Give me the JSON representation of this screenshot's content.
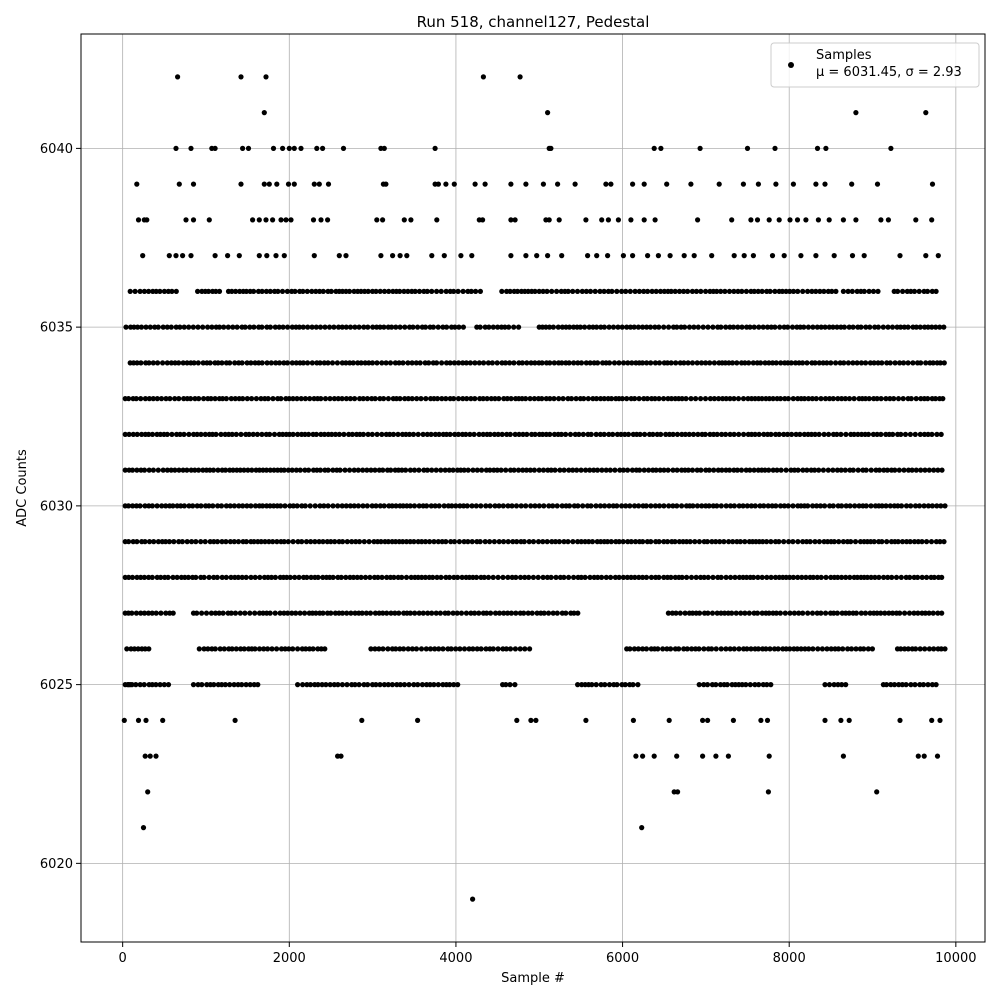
{
  "chart_data": {
    "type": "scatter",
    "title": "Run 518, channel127, Pedestal",
    "xlabel": "Sample #",
    "ylabel": "ADC Counts",
    "xlim": [
      -500,
      10350
    ],
    "ylim": [
      6017.8,
      6043.2
    ],
    "xticks": [
      0,
      2000,
      4000,
      6000,
      8000,
      10000
    ],
    "xtick_labels": [
      "0",
      "2000",
      "4000",
      "6000",
      "8000",
      "10000"
    ],
    "yticks": [
      6020,
      6025,
      6030,
      6035,
      6040
    ],
    "ytick_labels": [
      "6020",
      "6025",
      "6030",
      "6035",
      "6040"
    ],
    "grid": true,
    "legend": {
      "placement": "top-right",
      "entries": [
        {
          "label": "Samples",
          "stats": "μ = 6031.45, σ = 2.93"
        }
      ]
    },
    "marker_color": "#000000",
    "series": [
      {
        "name": "Samples",
        "points": [
          [
            20,
            6024
          ],
          [
            60,
            6025
          ],
          [
            90,
            6025
          ],
          [
            250,
            6021
          ],
          [
            280,
            6024
          ],
          [
            270,
            6023
          ],
          [
            300,
            6022
          ],
          [
            330,
            6023
          ],
          [
            400,
            6023
          ],
          [
            480,
            6024
          ],
          [
            660,
            6042
          ],
          [
            1420,
            6042
          ],
          [
            1720,
            6042
          ],
          [
            1700,
            6041
          ],
          [
            4330,
            6042
          ],
          [
            4770,
            6042
          ],
          [
            5100,
            6041
          ],
          [
            8800,
            6041
          ],
          [
            9640,
            6041
          ],
          [
            640,
            6040
          ],
          [
            820,
            6040
          ],
          [
            1070,
            6040
          ],
          [
            1110,
            6040
          ],
          [
            1440,
            6040
          ],
          [
            1510,
            6040
          ],
          [
            1810,
            6040
          ],
          [
            1920,
            6040
          ],
          [
            2000,
            6040
          ],
          [
            2060,
            6040
          ],
          [
            2140,
            6040
          ],
          [
            2330,
            6040
          ],
          [
            2400,
            6040
          ],
          [
            2650,
            6040
          ],
          [
            3100,
            6040
          ],
          [
            3140,
            6040
          ],
          [
            3750,
            6040
          ],
          [
            5120,
            6040
          ],
          [
            5140,
            6040
          ],
          [
            6380,
            6040
          ],
          [
            6460,
            6040
          ],
          [
            6930,
            6040
          ],
          [
            7500,
            6040
          ],
          [
            7830,
            6040
          ],
          [
            8340,
            6040
          ],
          [
            8440,
            6040
          ],
          [
            9220,
            6040
          ],
          [
            170,
            6039
          ],
          [
            680,
            6039
          ],
          [
            850,
            6039
          ],
          [
            1420,
            6039
          ],
          [
            1700,
            6039
          ],
          [
            1760,
            6039
          ],
          [
            1850,
            6039
          ],
          [
            1990,
            6039
          ],
          [
            2060,
            6039
          ],
          [
            2300,
            6039
          ],
          [
            2360,
            6039
          ],
          [
            2470,
            6039
          ],
          [
            3130,
            6039
          ],
          [
            3160,
            6039
          ],
          [
            3750,
            6039
          ],
          [
            3790,
            6039
          ],
          [
            3880,
            6039
          ],
          [
            3980,
            6039
          ],
          [
            4230,
            6039
          ],
          [
            4350,
            6039
          ],
          [
            4660,
            6039
          ],
          [
            4840,
            6039
          ],
          [
            5050,
            6039
          ],
          [
            5220,
            6039
          ],
          [
            5430,
            6039
          ],
          [
            5800,
            6039
          ],
          [
            5860,
            6039
          ],
          [
            6120,
            6039
          ],
          [
            6260,
            6039
          ],
          [
            6530,
            6039
          ],
          [
            6820,
            6039
          ],
          [
            7160,
            6039
          ],
          [
            7450,
            6039
          ],
          [
            7630,
            6039
          ],
          [
            7840,
            6039
          ],
          [
            8050,
            6039
          ],
          [
            8320,
            6039
          ],
          [
            8430,
            6039
          ],
          [
            8750,
            6039
          ],
          [
            9060,
            6039
          ],
          [
            9720,
            6039
          ],
          [
            190,
            6038
          ],
          [
            260,
            6038
          ],
          [
            290,
            6038
          ],
          [
            760,
            6038
          ],
          [
            850,
            6038
          ],
          [
            1040,
            6038
          ],
          [
            1560,
            6038
          ],
          [
            1640,
            6038
          ],
          [
            1720,
            6038
          ],
          [
            1800,
            6038
          ],
          [
            1900,
            6038
          ],
          [
            1960,
            6038
          ],
          [
            2020,
            6038
          ],
          [
            2290,
            6038
          ],
          [
            2380,
            6038
          ],
          [
            2460,
            6038
          ],
          [
            3050,
            6038
          ],
          [
            3120,
            6038
          ],
          [
            3380,
            6038
          ],
          [
            3460,
            6038
          ],
          [
            3770,
            6038
          ],
          [
            4280,
            6038
          ],
          [
            4320,
            6038
          ],
          [
            4660,
            6038
          ],
          [
            4710,
            6038
          ],
          [
            5080,
            6038
          ],
          [
            5120,
            6038
          ],
          [
            5240,
            6038
          ],
          [
            5560,
            6038
          ],
          [
            5750,
            6038
          ],
          [
            5830,
            6038
          ],
          [
            5950,
            6038
          ],
          [
            6100,
            6038
          ],
          [
            6260,
            6038
          ],
          [
            6390,
            6038
          ],
          [
            6900,
            6038
          ],
          [
            7310,
            6038
          ],
          [
            7540,
            6038
          ],
          [
            7620,
            6038
          ],
          [
            7760,
            6038
          ],
          [
            7880,
            6038
          ],
          [
            8010,
            6038
          ],
          [
            8100,
            6038
          ],
          [
            8200,
            6038
          ],
          [
            8350,
            6038
          ],
          [
            8480,
            6038
          ],
          [
            8650,
            6038
          ],
          [
            8800,
            6038
          ],
          [
            9100,
            6038
          ],
          [
            9190,
            6038
          ],
          [
            9520,
            6038
          ],
          [
            9710,
            6038
          ],
          [
            240,
            6037
          ],
          [
            560,
            6037
          ],
          [
            640,
            6037
          ],
          [
            720,
            6037
          ],
          [
            820,
            6037
          ],
          [
            1110,
            6037
          ],
          [
            1260,
            6037
          ],
          [
            1400,
            6037
          ],
          [
            1640,
            6037
          ],
          [
            1730,
            6037
          ],
          [
            1840,
            6037
          ],
          [
            1940,
            6037
          ],
          [
            2300,
            6037
          ],
          [
            2600,
            6037
          ],
          [
            2680,
            6037
          ],
          [
            3100,
            6037
          ],
          [
            3240,
            6037
          ],
          [
            3330,
            6037
          ],
          [
            3410,
            6037
          ],
          [
            3710,
            6037
          ],
          [
            3860,
            6037
          ],
          [
            4060,
            6037
          ],
          [
            4190,
            6037
          ],
          [
            4660,
            6037
          ],
          [
            4840,
            6037
          ],
          [
            4970,
            6037
          ],
          [
            5100,
            6037
          ],
          [
            5270,
            6037
          ],
          [
            5580,
            6037
          ],
          [
            5690,
            6037
          ],
          [
            5820,
            6037
          ],
          [
            6010,
            6037
          ],
          [
            6120,
            6037
          ],
          [
            6300,
            6037
          ],
          [
            6430,
            6037
          ],
          [
            6570,
            6037
          ],
          [
            6740,
            6037
          ],
          [
            6860,
            6037
          ],
          [
            7070,
            6037
          ],
          [
            7340,
            6037
          ],
          [
            7460,
            6037
          ],
          [
            7570,
            6037
          ],
          [
            7800,
            6037
          ],
          [
            7940,
            6037
          ],
          [
            8140,
            6037
          ],
          [
            8320,
            6037
          ],
          [
            8540,
            6037
          ],
          [
            8760,
            6037
          ],
          [
            8900,
            6037
          ],
          [
            9330,
            6037
          ],
          [
            9640,
            6037
          ],
          [
            9790,
            6037
          ],
          [
            190,
            6024
          ],
          [
            1350,
            6024
          ],
          [
            2870,
            6024
          ],
          [
            3540,
            6024
          ],
          [
            4730,
            6024
          ],
          [
            4900,
            6024
          ],
          [
            4960,
            6024
          ],
          [
            5560,
            6024
          ],
          [
            6130,
            6024
          ],
          [
            6560,
            6024
          ],
          [
            6960,
            6024
          ],
          [
            7020,
            6024
          ],
          [
            7330,
            6024
          ],
          [
            7660,
            6024
          ],
          [
            7740,
            6024
          ],
          [
            8430,
            6024
          ],
          [
            8620,
            6024
          ],
          [
            8720,
            6024
          ],
          [
            9330,
            6024
          ],
          [
            9710,
            6024
          ],
          [
            9810,
            6024
          ],
          [
            2580,
            6023
          ],
          [
            2620,
            6023
          ],
          [
            6160,
            6023
          ],
          [
            6240,
            6023
          ],
          [
            6380,
            6023
          ],
          [
            6650,
            6023
          ],
          [
            6960,
            6023
          ],
          [
            7120,
            6023
          ],
          [
            7270,
            6023
          ],
          [
            7760,
            6023
          ],
          [
            8650,
            6023
          ],
          [
            9550,
            6023
          ],
          [
            9620,
            6023
          ],
          [
            9780,
            6023
          ],
          [
            6620,
            6022
          ],
          [
            6660,
            6022
          ],
          [
            7750,
            6022
          ],
          [
            9050,
            6022
          ],
          [
            6230,
            6021
          ],
          [
            4200,
            6019
          ]
        ]
      }
    ]
  }
}
